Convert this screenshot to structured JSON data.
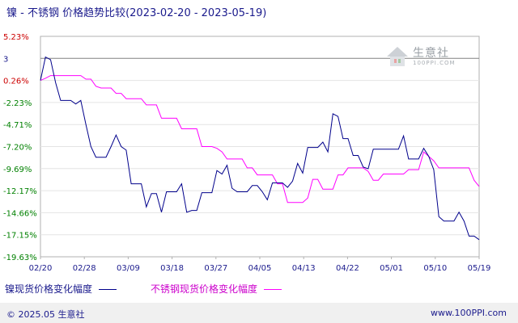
{
  "title": "镍 - 不锈钢 价格趋势比较(2023-02-20 - 2023-05-19)",
  "legend": {
    "series_a": "镍现货价格变化幅度",
    "series_b": "不锈钢现货价格变化幅度"
  },
  "footer": {
    "copyright": "© 2025.05 生意社",
    "site": "www.100PPI.com"
  },
  "logo": {
    "name": "生意社",
    "sub": "100PPI.COM"
  },
  "colors": {
    "series_a": "#00008b",
    "series_b": "#ff00ff",
    "positive_tick": "#cc0000",
    "negative_tick": "#008000",
    "axis_tick": "#1a1a8c"
  },
  "chart_data": {
    "type": "line",
    "title": "镍 - 不锈钢 价格趋势比较(2023-02-20 - 2023-05-19)",
    "xlabel": "",
    "ylabel": "",
    "x_ticks": [
      "02/20",
      "02/28",
      "03/09",
      "03/18",
      "03/27",
      "04/05",
      "04/13",
      "04/22",
      "05/01",
      "05/10",
      "05/19"
    ],
    "y_ticks": [
      "5.23%",
      "3",
      "0.26%",
      "-2.23%",
      "-4.71%",
      "-7.20%",
      "-9.69%",
      "-12.17%",
      "-14.66%",
      "-17.15%",
      "-19.63%"
    ],
    "ylim": [
      -19.63,
      5.23
    ],
    "grid": "horizontal",
    "legend_position": "bottom",
    "series": [
      {
        "name": "镍现货价格变化幅度",
        "values": [
          0.26,
          2.9,
          2.6,
          0.0,
          -2.0,
          -2.0,
          -2.0,
          -2.4,
          -2.0,
          -4.7,
          -7.2,
          -8.4,
          -8.4,
          -8.4,
          -7.2,
          -5.9,
          -7.2,
          -7.6,
          -11.4,
          -11.4,
          -11.4,
          -14.0,
          -12.5,
          -12.5,
          -14.6,
          -12.3,
          -12.3,
          -12.3,
          -11.4,
          -14.6,
          -14.4,
          -14.4,
          -12.4,
          -12.4,
          -12.4,
          -9.9,
          -10.3,
          -9.3,
          -11.9,
          -12.3,
          -12.3,
          -12.3,
          -11.6,
          -11.6,
          -12.3,
          -13.2,
          -11.3,
          -11.3,
          -11.3,
          -11.8,
          -11.1,
          -9.1,
          -10.2,
          -7.3,
          -7.3,
          -7.3,
          -6.7,
          -7.8,
          -3.5,
          -3.8,
          -6.3,
          -6.3,
          -8.2,
          -8.2,
          -9.5,
          -9.7,
          -7.5,
          -7.5,
          -7.5,
          -7.5,
          -7.5,
          -7.5,
          -6.0,
          -8.6,
          -8.6,
          -8.6,
          -7.4,
          -8.3,
          -9.8,
          -15.1,
          -15.6,
          -15.6,
          -15.6,
          -14.6,
          -15.6,
          -17.3,
          -17.3,
          -17.7
        ]
      },
      {
        "name": "不锈钢现货价格变化幅度",
        "values": [
          0.26,
          0.5,
          0.8,
          0.8,
          0.8,
          0.8,
          0.8,
          0.8,
          0.8,
          0.4,
          0.4,
          -0.4,
          -0.6,
          -0.6,
          -0.6,
          -1.2,
          -1.2,
          -1.8,
          -1.8,
          -1.8,
          -1.8,
          -2.5,
          -2.5,
          -2.5,
          -4.0,
          -4.0,
          -4.0,
          -4.0,
          -5.2,
          -5.2,
          -5.2,
          -5.2,
          -7.2,
          -7.2,
          -7.2,
          -7.4,
          -7.8,
          -8.6,
          -8.6,
          -8.6,
          -8.6,
          -9.6,
          -9.6,
          -10.4,
          -10.4,
          -10.4,
          -10.4,
          -11.4,
          -11.4,
          -13.5,
          -13.5,
          -13.5,
          -13.5,
          -13.0,
          -10.9,
          -10.9,
          -12.0,
          -12.0,
          -12.0,
          -10.4,
          -10.4,
          -9.6,
          -9.6,
          -9.6,
          -9.6,
          -10.0,
          -11.0,
          -11.0,
          -10.3,
          -10.3,
          -10.3,
          -10.3,
          -10.3,
          -9.8,
          -9.8,
          -9.8,
          -7.8,
          -8.3,
          -8.8,
          -9.6,
          -9.6,
          -9.6,
          -9.6,
          -9.6,
          -9.6,
          -9.6,
          -11.0,
          -11.7
        ]
      }
    ]
  }
}
